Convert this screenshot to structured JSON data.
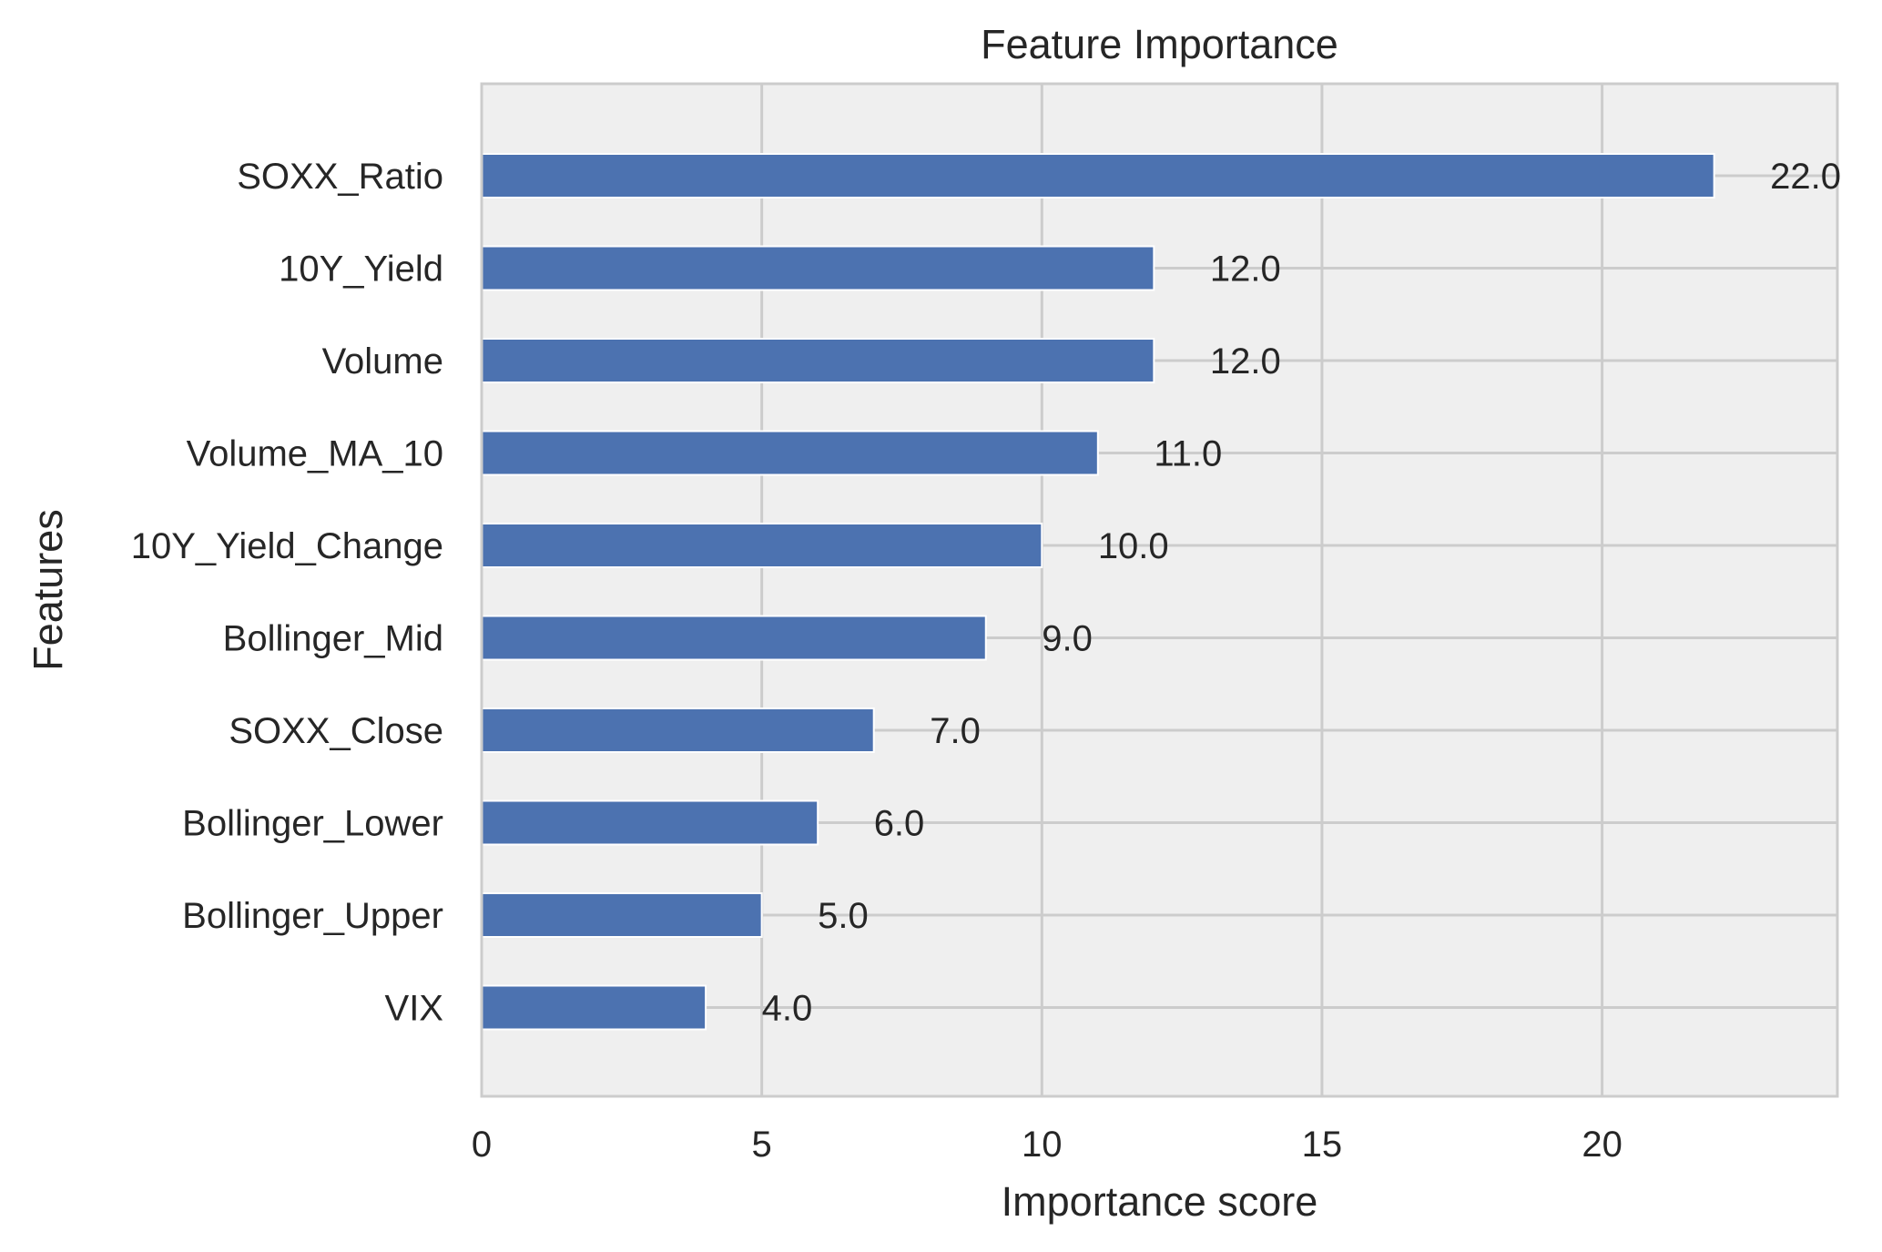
{
  "chart_data": {
    "type": "bar",
    "orientation": "horizontal",
    "title": "Feature Importance",
    "xlabel": "Importance score",
    "ylabel": "Features",
    "categories": [
      "SOXX_Ratio",
      "10Y_Yield",
      "Volume",
      "Volume_MA_10",
      "10Y_Yield_Change",
      "Bollinger_Mid",
      "SOXX_Close",
      "Bollinger_Lower",
      "Bollinger_Upper",
      "VIX"
    ],
    "values": [
      22.0,
      12.0,
      12.0,
      11.0,
      10.0,
      9.0,
      7.0,
      6.0,
      5.0,
      4.0
    ],
    "value_labels": [
      "22.0",
      "12.0",
      "12.0",
      "11.0",
      "10.0",
      "9.0",
      "7.0",
      "6.0",
      "5.0",
      "4.0"
    ],
    "xticks": [
      0,
      5,
      10,
      15,
      20
    ],
    "xlim": [
      0,
      24.2
    ],
    "grid": true,
    "colors": {
      "bar": "#4c72b0",
      "plot_background": "#efefef",
      "grid": "#cccccc",
      "text": "#262626"
    }
  }
}
